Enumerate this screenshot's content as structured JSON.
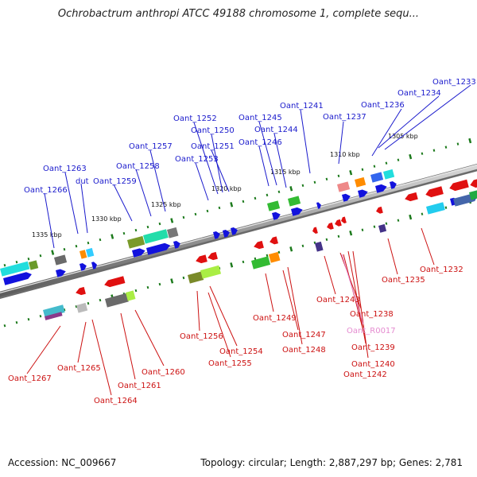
{
  "title": "Ochrobactrum anthropi ATCC 49188 chromosome 1, complete sequ...",
  "footer": {
    "accession": "Accession: NC_009667",
    "topology": "Topology: circular; Length: 2,887,297 bp; Genes: 2,781"
  },
  "colors": {
    "forward_label": "#1a1acc",
    "reverse_label": "#cc1111",
    "rna_label": "#e58bd0",
    "scale_dots": "#1c7a1c"
  },
  "scale": [
    {
      "label": "1335 kbp"
    },
    {
      "label": "1330 kbp"
    },
    {
      "label": "1325 kbp"
    },
    {
      "label": "1320 kbp"
    },
    {
      "label": "1315 kbp"
    },
    {
      "label": "1310 kbp"
    },
    {
      "label": "1305 kbp"
    }
  ],
  "top_labels": [
    {
      "text": "Oant_1233"
    },
    {
      "text": "Oant_1234"
    },
    {
      "text": "Oant_1236"
    },
    {
      "text": "Oant_1237"
    },
    {
      "text": "Oant_1241"
    },
    {
      "text": "Oant_1244"
    },
    {
      "text": "Oant_1245"
    },
    {
      "text": "Oant_1246"
    },
    {
      "text": "Oant_1250"
    },
    {
      "text": "Oant_1251"
    },
    {
      "text": "Oant_1252"
    },
    {
      "text": "Oant_1253"
    },
    {
      "text": "Oant_1257"
    },
    {
      "text": "Oant_1258"
    },
    {
      "text": "Oant_1259"
    },
    {
      "text": "Oant_1263"
    },
    {
      "text": "dut"
    },
    {
      "text": "Oant_1266"
    }
  ],
  "bottom_labels": [
    {
      "text": "Oant_1232",
      "kind": "reverse"
    },
    {
      "text": "Oant_1235",
      "kind": "reverse"
    },
    {
      "text": "Oant_1243",
      "kind": "reverse"
    },
    {
      "text": "Oant_1238",
      "kind": "reverse"
    },
    {
      "text": "Oant_R0017",
      "kind": "rna"
    },
    {
      "text": "Oant_1239",
      "kind": "reverse"
    },
    {
      "text": "Oant_1240",
      "kind": "reverse"
    },
    {
      "text": "Oant_1242",
      "kind": "reverse"
    },
    {
      "text": "Oant_1247",
      "kind": "reverse"
    },
    {
      "text": "Oant_1248",
      "kind": "reverse"
    },
    {
      "text": "Oant_1249",
      "kind": "reverse"
    },
    {
      "text": "Oant_1254",
      "kind": "reverse"
    },
    {
      "text": "Oant_1255",
      "kind": "reverse"
    },
    {
      "text": "Oant_1256",
      "kind": "reverse"
    },
    {
      "text": "Oant_1260",
      "kind": "reverse"
    },
    {
      "text": "Oant_1261",
      "kind": "reverse"
    },
    {
      "text": "Oant_1264",
      "kind": "reverse"
    },
    {
      "text": "Oant_1265",
      "kind": "reverse"
    },
    {
      "text": "Oant_1267",
      "kind": "reverse"
    }
  ]
}
